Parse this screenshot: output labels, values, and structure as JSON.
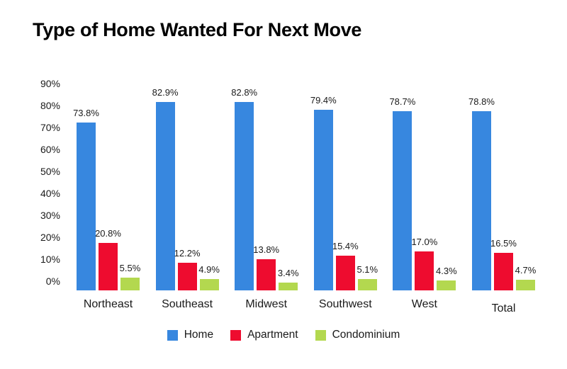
{
  "page": {
    "background": "#ffffff"
  },
  "chart_data": {
    "type": "bar",
    "title": "Type of Home Wanted For Next Move",
    "categories": [
      "Northeast",
      "Southeast",
      "Midwest",
      "Southwest",
      "West",
      "Total"
    ],
    "series": [
      {
        "name": "Home",
        "color": "#3787df",
        "values": [
          73.8,
          82.9,
          82.8,
          79.4,
          78.7,
          78.8
        ],
        "labels": [
          "73.8%",
          "82.9%",
          "82.8%",
          "79.4%",
          "78.7%",
          "78.8%"
        ]
      },
      {
        "name": "Apartment",
        "color": "#ee0c2f",
        "values": [
          20.8,
          12.2,
          13.8,
          15.4,
          17.0,
          16.5
        ],
        "labels": [
          "20.8%",
          "12.2%",
          "13.8%",
          "15.4%",
          "17.0%",
          "16.5%"
        ]
      },
      {
        "name": "Condominium",
        "color": "#b3d84f",
        "values": [
          5.5,
          4.9,
          3.4,
          5.1,
          4.3,
          4.7
        ],
        "labels": [
          "5.5%",
          "4.9%",
          "3.4%",
          "5.1%",
          "4.3%",
          "4.7%"
        ]
      }
    ],
    "y_axis": {
      "min": 0,
      "max": 90,
      "tick_step": 10,
      "ticks": [
        "0%",
        "10%",
        "20%",
        "30%",
        "40%",
        "50%",
        "60%",
        "70%",
        "80%",
        "90%"
      ]
    },
    "ylim": [
      0,
      90
    ],
    "grid": false,
    "legend": {
      "position": "bottom",
      "entries": [
        {
          "label": "Home",
          "color": "#3787df"
        },
        {
          "label": "Apartment",
          "color": "#ee0c2f"
        },
        {
          "label": "Condominium",
          "color": "#b3d84f"
        }
      ]
    }
  }
}
